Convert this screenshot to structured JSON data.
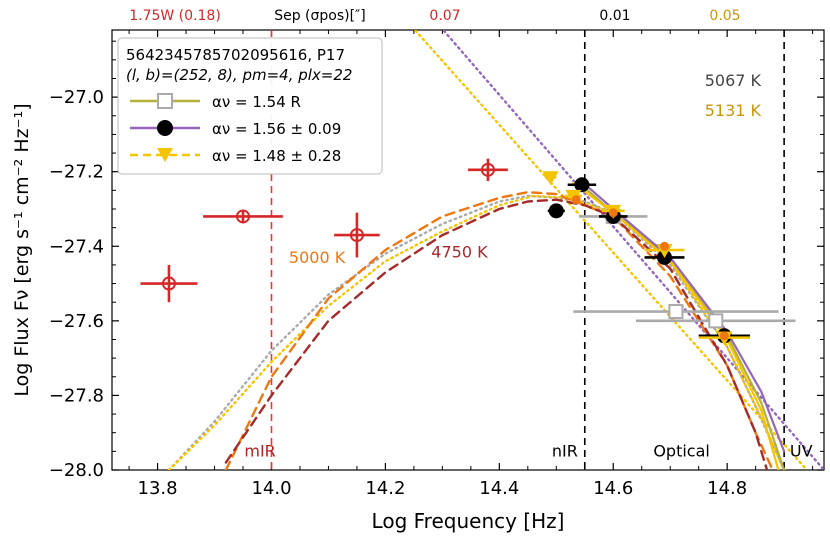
{
  "chart_data": {
    "type": "scatter",
    "title": "",
    "xlabel": "Log Frequency [Hz]",
    "ylabel": "Log Flux Fν [erg s⁻¹ cm⁻² Hz⁻¹]",
    "xlim": [
      13.72,
      14.97
    ],
    "ylim": [
      -28.0,
      -26.82
    ],
    "xticks": [
      13.8,
      14.0,
      14.2,
      14.4,
      14.6,
      14.8
    ],
    "xtick_labels": [
      "13.8",
      "14.0",
      "14.2",
      "14.4",
      "14.6",
      "14.8"
    ],
    "yticks": [
      -28.0,
      -27.8,
      -27.6,
      -27.4,
      -27.2,
      -27.0
    ],
    "ytick_labels": [
      "−28.0",
      "−27.8",
      "−27.6",
      "−27.4",
      "−27.2",
      "−27.0"
    ],
    "top_labels": [
      {
        "text": "1.75W (0.18)",
        "x": 13.84,
        "color": "#d62728"
      },
      {
        "text": "Sep (σpos)[″]",
        "x": 14.05,
        "color": "#000000"
      },
      {
        "text": "0.07",
        "x": 14.32,
        "color": "#d62728"
      },
      {
        "text": "0.01",
        "x": 14.64,
        "color": "#000000"
      },
      {
        "text": "0.05",
        "x": 14.775,
        "color": "#c8960a"
      }
    ],
    "info_box": {
      "line1": "5642345785702095616, P17",
      "line2": "(l, b)=(252, 8), pm=4, plx=22"
    },
    "legend": [
      {
        "label": "αν = 1.54   R",
        "color": "#b5b03a",
        "marker": "square-open",
        "linestyle": "solid"
      },
      {
        "label": "αν = 1.56 ± 0.09",
        "color": "#9467bd",
        "marker": "circle",
        "linestyle": "solid"
      },
      {
        "label": "αν = 1.48 ± 0.28",
        "color": "#f5c400",
        "marker": "triangle-down",
        "linestyle": "dashed"
      }
    ],
    "vlines": [
      {
        "x": 14.0,
        "color": "#e33",
        "label": "mIR"
      },
      {
        "x": 14.55,
        "color": "#000000",
        "label": "nIR"
      },
      {
        "x": 14.9,
        "color": "#000000",
        "label": "UV"
      }
    ],
    "band_labels": [
      {
        "text": "mIR",
        "x": 13.98,
        "y": -27.985,
        "color": "#b22222"
      },
      {
        "text": "nIR",
        "x": 14.515,
        "y": -27.985,
        "color": "#000000"
      },
      {
        "text": "Optical",
        "x": 14.72,
        "y": -27.985,
        "color": "#000000"
      },
      {
        "text": "UV",
        "x": 14.93,
        "y": -27.985,
        "color": "#000000"
      }
    ],
    "temperature_labels": [
      {
        "text": "5067 K",
        "x": 14.81,
        "y": -26.97,
        "color": "#444444"
      },
      {
        "text": "5131 K",
        "x": 14.81,
        "y": -27.05,
        "color": "#c8960a"
      },
      {
        "text": "5000 K",
        "x": 14.08,
        "y": -27.445,
        "color": "#ee7711"
      },
      {
        "text": "4750 K",
        "x": 14.33,
        "y": -27.43,
        "color": "#a52a2a"
      }
    ],
    "series": [
      {
        "name": "mIR open circles",
        "color": "#d62728",
        "marker": "circle-open",
        "points": [
          {
            "x": 13.82,
            "y": -27.5,
            "xerr": 0.05,
            "yerr": 0.05
          },
          {
            "x": 13.95,
            "y": -27.32,
            "xerr": 0.07,
            "yerr": 0.015
          },
          {
            "x": 14.15,
            "y": -27.37,
            "xerr": 0.04,
            "yerr": 0.06
          },
          {
            "x": 14.38,
            "y": -27.195,
            "xerr": 0.035,
            "yerr": 0.03
          }
        ]
      },
      {
        "name": "gray open squares",
        "color": "#aaaaaa",
        "marker": "square-open",
        "points": [
          {
            "x": 14.6,
            "y": -27.32,
            "xerr": 0.06,
            "yerr": 0.0
          },
          {
            "x": 14.71,
            "y": -27.575,
            "xerr": 0.18,
            "yerr": 0.0
          },
          {
            "x": 14.78,
            "y": -27.6,
            "xerr": 0.14,
            "yerr": 0.0
          }
        ]
      },
      {
        "name": "black filled circles",
        "color": "#000000",
        "marker": "circle",
        "points": [
          {
            "x": 14.5,
            "y": -27.305,
            "xerr": 0.015,
            "yerr": 0.0
          },
          {
            "x": 14.545,
            "y": -27.235,
            "xerr": 0.025,
            "yerr": 0.0
          },
          {
            "x": 14.6,
            "y": -27.32,
            "xerr": 0.025,
            "yerr": 0.0
          },
          {
            "x": 14.69,
            "y": -27.43,
            "xerr": 0.035,
            "yerr": 0.0
          },
          {
            "x": 14.795,
            "y": -27.64,
            "xerr": 0.045,
            "yerr": 0.0
          }
        ]
      },
      {
        "name": "yellow triangles",
        "color": "#f5c400",
        "marker": "triangle-down",
        "points": [
          {
            "x": 14.49,
            "y": -27.215,
            "xerr": 0.01,
            "yerr": 0.0
          },
          {
            "x": 14.53,
            "y": -27.265,
            "xerr": 0.015,
            "yerr": 0.0
          },
          {
            "x": 14.6,
            "y": -27.305,
            "xerr": 0.02,
            "yerr": 0.0
          },
          {
            "x": 14.69,
            "y": -27.41,
            "xerr": 0.035,
            "yerr": 0.0
          },
          {
            "x": 14.795,
            "y": -27.645,
            "xerr": 0.045,
            "yerr": 0.0
          }
        ]
      },
      {
        "name": "orange points",
        "color": "#ee7711",
        "marker": "circle-small",
        "points": [
          {
            "x": 14.535,
            "y": -27.275,
            "xerr": 0.0,
            "yerr": 0.0
          },
          {
            "x": 14.6,
            "y": -27.31,
            "xerr": 0.0,
            "yerr": 0.0
          },
          {
            "x": 14.69,
            "y": -27.4,
            "xerr": 0.0,
            "yerr": 0.0
          },
          {
            "x": 14.795,
            "y": -27.64,
            "xerr": 0.0,
            "yerr": 0.0
          }
        ]
      }
    ],
    "curves": [
      {
        "name": "powerlaw purple",
        "color": "#9467bd",
        "style": "dotted",
        "points": [
          [
            14.29,
            -26.8
          ],
          [
            14.97,
            -28.0
          ]
        ]
      },
      {
        "name": "powerlaw yellow",
        "color": "#f5c400",
        "style": "dotted",
        "points": [
          [
            14.24,
            -26.8
          ],
          [
            14.94,
            -28.0
          ]
        ]
      },
      {
        "name": "blackbody gray 5067K",
        "color": "#aaaaaa",
        "style": "dotted",
        "points": [
          [
            13.82,
            -28.0
          ],
          [
            13.9,
            -27.87
          ],
          [
            14.0,
            -27.68
          ],
          [
            14.1,
            -27.53
          ],
          [
            14.2,
            -27.42
          ],
          [
            14.3,
            -27.34
          ],
          [
            14.4,
            -27.28
          ],
          [
            14.45,
            -27.265
          ],
          [
            14.5,
            -27.27
          ],
          [
            14.55,
            -27.28
          ],
          [
            14.6,
            -27.31
          ],
          [
            14.7,
            -27.45
          ],
          [
            14.8,
            -27.67
          ],
          [
            14.85,
            -27.83
          ],
          [
            14.9,
            -28.0
          ]
        ]
      },
      {
        "name": "blackbody yellow 5131K",
        "color": "#f5c400",
        "style": "dotted",
        "points": [
          [
            13.82,
            -28.0
          ],
          [
            13.9,
            -27.88
          ],
          [
            14.0,
            -27.71
          ],
          [
            14.1,
            -27.56
          ],
          [
            14.2,
            -27.44
          ],
          [
            14.3,
            -27.36
          ],
          [
            14.4,
            -27.29
          ],
          [
            14.46,
            -27.265
          ],
          [
            14.52,
            -27.27
          ],
          [
            14.6,
            -27.31
          ],
          [
            14.7,
            -27.44
          ],
          [
            14.8,
            -27.67
          ],
          [
            14.86,
            -27.86
          ],
          [
            14.9,
            -28.0
          ]
        ]
      },
      {
        "name": "blackbody orange 5000K",
        "color": "#ee7711",
        "style": "dashed",
        "points": [
          [
            13.92,
            -28.0
          ],
          [
            14.0,
            -27.75
          ],
          [
            14.1,
            -27.54
          ],
          [
            14.2,
            -27.41
          ],
          [
            14.3,
            -27.32
          ],
          [
            14.4,
            -27.27
          ],
          [
            14.45,
            -27.255
          ],
          [
            14.5,
            -27.26
          ],
          [
            14.6,
            -27.32
          ],
          [
            14.7,
            -27.48
          ],
          [
            14.8,
            -27.72
          ],
          [
            14.85,
            -27.9
          ],
          [
            14.88,
            -28.0
          ]
        ]
      },
      {
        "name": "blackbody brown 4750K",
        "color": "#a52a2a",
        "style": "dashed",
        "points": [
          [
            13.92,
            -27.98
          ],
          [
            14.0,
            -27.8
          ],
          [
            14.1,
            -27.6
          ],
          [
            14.2,
            -27.47
          ],
          [
            14.3,
            -27.37
          ],
          [
            14.4,
            -27.3
          ],
          [
            14.45,
            -27.28
          ],
          [
            14.5,
            -27.275
          ],
          [
            14.55,
            -27.29
          ],
          [
            14.6,
            -27.32
          ],
          [
            14.7,
            -27.46
          ],
          [
            14.8,
            -27.72
          ],
          [
            14.85,
            -27.9
          ],
          [
            14.87,
            -28.0
          ]
        ]
      },
      {
        "name": "fit olive",
        "color": "#b5b03a",
        "style": "solid",
        "points": [
          [
            14.54,
            -27.23
          ],
          [
            14.6,
            -27.31
          ],
          [
            14.7,
            -27.43
          ],
          [
            14.8,
            -27.64
          ],
          [
            14.86,
            -27.82
          ],
          [
            14.9,
            -28.0
          ]
        ]
      },
      {
        "name": "fit purple",
        "color": "#9467bd",
        "style": "solid",
        "points": [
          [
            14.54,
            -27.22
          ],
          [
            14.6,
            -27.3
          ],
          [
            14.7,
            -27.43
          ],
          [
            14.8,
            -27.63
          ],
          [
            14.86,
            -27.79
          ],
          [
            14.9,
            -27.95
          ]
        ]
      },
      {
        "name": "fit yellow",
        "color": "#f5c400",
        "style": "solid",
        "points": [
          [
            14.53,
            -27.23
          ],
          [
            14.6,
            -27.31
          ],
          [
            14.7,
            -27.44
          ],
          [
            14.8,
            -27.65
          ],
          [
            14.86,
            -27.84
          ],
          [
            14.89,
            -28.0
          ]
        ]
      }
    ]
  }
}
